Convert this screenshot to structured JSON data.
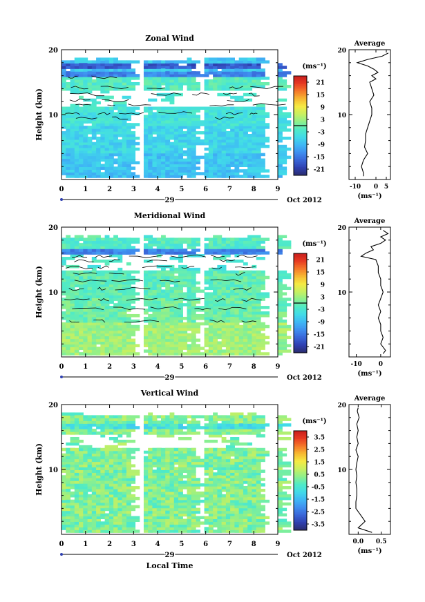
{
  "chart_data": [
    {
      "type": "heatmap",
      "title": "Zonal Wind",
      "ylabel": "Height (km)",
      "xlim": [
        0,
        9
      ],
      "ylim": [
        0,
        20
      ],
      "x_ticks": [
        "0",
        "1",
        "2",
        "3",
        "4",
        "5",
        "6",
        "7",
        "8",
        "9"
      ],
      "y_ticks": [
        "10",
        "20"
      ],
      "date_marker": "29",
      "date_label": "Oct 2012",
      "colorbar": {
        "unit": "(ms⁻¹)",
        "ticks": [
          "21",
          "15",
          "9",
          "3",
          "-3",
          "-9",
          "-15",
          "-21"
        ],
        "range": [
          -24,
          24
        ]
      },
      "average": {
        "title": "Average",
        "xlabel": "(ms⁻¹)",
        "x_ticks": [
          "-10",
          "0",
          "5"
        ],
        "xlim": [
          -13,
          7
        ],
        "y_ticks": [
          "10",
          "20"
        ],
        "height": [
          0.5,
          1,
          2,
          3,
          4,
          5,
          6,
          7,
          8,
          9,
          10,
          11,
          12,
          13,
          14,
          15,
          15.5,
          16,
          16.5,
          17,
          17.5,
          18,
          18.5,
          19,
          19.5
        ],
        "value": [
          -6,
          -6,
          -7,
          -6,
          -4,
          -5.5,
          -5,
          -5,
          -4,
          -3,
          -2,
          -2,
          -3,
          -1,
          -2,
          -3,
          0,
          -2,
          1,
          -1,
          -4,
          -9,
          -4,
          3,
          6
        ]
      }
    },
    {
      "type": "heatmap",
      "title": "Meridional Wind",
      "ylabel": "Height (km)",
      "xlim": [
        0,
        9
      ],
      "ylim": [
        0,
        20
      ],
      "x_ticks": [
        "0",
        "1",
        "2",
        "3",
        "4",
        "5",
        "6",
        "7",
        "8",
        "9"
      ],
      "y_ticks": [
        "10",
        "20"
      ],
      "date_marker": "29",
      "date_label": "Oct 2012",
      "colorbar": {
        "unit": "(ms⁻¹)",
        "ticks": [
          "21",
          "15",
          "9",
          "3",
          "-3",
          "-9",
          "-15",
          "-21"
        ],
        "range": [
          -24,
          24
        ]
      },
      "average": {
        "title": "Average",
        "xlabel": "(ms⁻¹)",
        "x_ticks": [
          "-10",
          "0"
        ],
        "xlim": [
          -13,
          4
        ],
        "y_ticks": [
          "10",
          "20"
        ],
        "height": [
          0.5,
          1,
          2,
          3,
          4,
          5,
          6,
          7,
          8,
          9,
          10,
          11,
          12,
          13,
          14,
          15,
          15.5,
          16,
          16.5,
          17,
          17.5,
          18,
          18.5,
          19,
          19.5
        ],
        "value": [
          1,
          2,
          0,
          1,
          0,
          0,
          -1,
          0,
          -1,
          0,
          1,
          0,
          0,
          -1,
          -1,
          -2,
          -8,
          -6,
          -3,
          -4,
          0,
          2,
          0,
          3,
          1
        ]
      }
    },
    {
      "type": "heatmap",
      "title": "Vertical Wind",
      "ylabel": "Height (km)",
      "xlabel": "Local Time",
      "xlim": [
        0,
        9
      ],
      "ylim": [
        0,
        20
      ],
      "x_ticks": [
        "0",
        "1",
        "2",
        "3",
        "4",
        "5",
        "6",
        "7",
        "8",
        "9"
      ],
      "y_ticks": [
        "10",
        "20"
      ],
      "date_marker": "29",
      "date_label": "Oct 2012",
      "colorbar": {
        "unit": "(ms⁻¹)",
        "ticks": [
          "3.5",
          "2.5",
          "1.5",
          "0.5",
          "-0.5",
          "-1.5",
          "-2.5",
          "-3.5"
        ],
        "range": [
          -4,
          4
        ]
      },
      "average": {
        "title": "Average",
        "xlabel": "(ms⁻¹)",
        "x_ticks": [
          "0.0",
          "0.5"
        ],
        "xlim": [
          -0.2,
          0.7
        ],
        "y_ticks": [
          "10",
          "20"
        ],
        "height": [
          0.3,
          1,
          2,
          3,
          4,
          5,
          6,
          7,
          8,
          9,
          10,
          11,
          12,
          13,
          14,
          15,
          16,
          17,
          18,
          19,
          19.5
        ],
        "value": [
          0.3,
          0.0,
          0.15,
          0.05,
          -0.05,
          -0.05,
          -0.03,
          -0.03,
          -0.05,
          -0.03,
          -0.05,
          -0.03,
          0.0,
          -0.05,
          0.0,
          -0.03,
          0.0,
          -0.03,
          0.02,
          -0.02,
          0.0
        ]
      }
    }
  ]
}
